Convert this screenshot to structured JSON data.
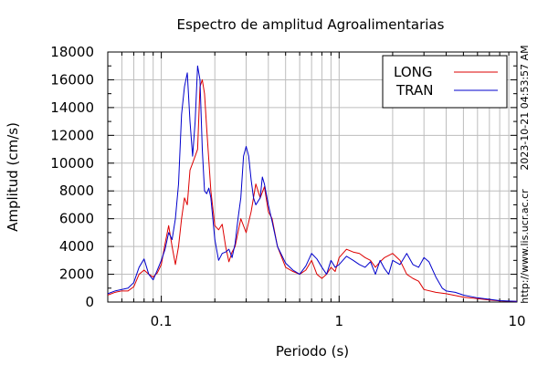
{
  "chart_data": {
    "type": "line",
    "title": "Espectro de amplitud Agroalimentarias",
    "xlabel": "Periodo (s)",
    "ylabel": "Amplitud (cm/s)",
    "x_scale": "log",
    "xlim": [
      0.05,
      10
    ],
    "ylim": [
      0,
      18000
    ],
    "x_ticks": [
      {
        "value": 0.1,
        "label": "0.1"
      },
      {
        "value": 1,
        "label": "1"
      },
      {
        "value": 10,
        "label": "10"
      }
    ],
    "y_ticks": [
      {
        "value": 0,
        "label": "0"
      },
      {
        "value": 2000,
        "label": "2000"
      },
      {
        "value": 4000,
        "label": "4000"
      },
      {
        "value": 6000,
        "label": "6000"
      },
      {
        "value": 8000,
        "label": "8000"
      },
      {
        "value": 10000,
        "label": "10000"
      },
      {
        "value": 12000,
        "label": "12000"
      },
      {
        "value": 14000,
        "label": "14000"
      },
      {
        "value": 16000,
        "label": "16000"
      },
      {
        "value": 18000,
        "label": "18000"
      }
    ],
    "grid": true,
    "legend_position": "top-right",
    "side_labels": {
      "timestamp": "2023-10-21 04:53:57 AM",
      "url": "http://www.lis.ucr.ac.cr"
    },
    "series": [
      {
        "name": "LONG",
        "color": "#dd0000",
        "points": [
          [
            0.05,
            500
          ],
          [
            0.055,
            700
          ],
          [
            0.06,
            800
          ],
          [
            0.065,
            800
          ],
          [
            0.07,
            1100
          ],
          [
            0.075,
            2000
          ],
          [
            0.08,
            2300
          ],
          [
            0.085,
            2000
          ],
          [
            0.09,
            1800
          ],
          [
            0.095,
            2100
          ],
          [
            0.1,
            2700
          ],
          [
            0.105,
            4200
          ],
          [
            0.11,
            5500
          ],
          [
            0.115,
            4000
          ],
          [
            0.12,
            2700
          ],
          [
            0.125,
            4000
          ],
          [
            0.13,
            6000
          ],
          [
            0.135,
            7500
          ],
          [
            0.14,
            7000
          ],
          [
            0.145,
            9500
          ],
          [
            0.15,
            10000
          ],
          [
            0.155,
            10500
          ],
          [
            0.16,
            11000
          ],
          [
            0.165,
            15500
          ],
          [
            0.17,
            16000
          ],
          [
            0.175,
            15000
          ],
          [
            0.18,
            12500
          ],
          [
            0.19,
            8000
          ],
          [
            0.2,
            5500
          ],
          [
            0.21,
            5200
          ],
          [
            0.22,
            5600
          ],
          [
            0.23,
            4000
          ],
          [
            0.24,
            2900
          ],
          [
            0.25,
            3600
          ],
          [
            0.26,
            4000
          ],
          [
            0.28,
            6000
          ],
          [
            0.3,
            5000
          ],
          [
            0.32,
            6500
          ],
          [
            0.34,
            8500
          ],
          [
            0.36,
            7500
          ],
          [
            0.38,
            8300
          ],
          [
            0.4,
            6500
          ],
          [
            0.42,
            6000
          ],
          [
            0.45,
            4000
          ],
          [
            0.5,
            2500
          ],
          [
            0.55,
            2200
          ],
          [
            0.6,
            2000
          ],
          [
            0.65,
            2300
          ],
          [
            0.7,
            3000
          ],
          [
            0.75,
            2000
          ],
          [
            0.8,
            1700
          ],
          [
            0.85,
            2000
          ],
          [
            0.9,
            2500
          ],
          [
            0.95,
            2200
          ],
          [
            1.0,
            3200
          ],
          [
            1.1,
            3800
          ],
          [
            1.2,
            3600
          ],
          [
            1.3,
            3500
          ],
          [
            1.4,
            3200
          ],
          [
            1.5,
            3000
          ],
          [
            1.6,
            2500
          ],
          [
            1.7,
            2900
          ],
          [
            1.8,
            3200
          ],
          [
            2.0,
            3500
          ],
          [
            2.2,
            3000
          ],
          [
            2.4,
            2000
          ],
          [
            2.6,
            1700
          ],
          [
            2.8,
            1500
          ],
          [
            3.0,
            900
          ],
          [
            3.5,
            700
          ],
          [
            4.0,
            600
          ],
          [
            5.0,
            350
          ],
          [
            6.0,
            250
          ],
          [
            7.0,
            150
          ],
          [
            8.0,
            80
          ],
          [
            10,
            40
          ]
        ]
      },
      {
        "name": "TRAN",
        "color": "#0000cc",
        "points": [
          [
            0.05,
            600
          ],
          [
            0.055,
            800
          ],
          [
            0.06,
            900
          ],
          [
            0.065,
            1000
          ],
          [
            0.07,
            1400
          ],
          [
            0.075,
            2500
          ],
          [
            0.08,
            3100
          ],
          [
            0.085,
            2000
          ],
          [
            0.09,
            1600
          ],
          [
            0.095,
            2300
          ],
          [
            0.1,
            3000
          ],
          [
            0.105,
            3800
          ],
          [
            0.11,
            5000
          ],
          [
            0.115,
            4500
          ],
          [
            0.12,
            6000
          ],
          [
            0.125,
            8500
          ],
          [
            0.13,
            13500
          ],
          [
            0.135,
            15500
          ],
          [
            0.14,
            16500
          ],
          [
            0.145,
            13000
          ],
          [
            0.15,
            10500
          ],
          [
            0.155,
            13000
          ],
          [
            0.16,
            17000
          ],
          [
            0.165,
            16000
          ],
          [
            0.17,
            11000
          ],
          [
            0.175,
            8000
          ],
          [
            0.18,
            7800
          ],
          [
            0.185,
            8200
          ],
          [
            0.19,
            7500
          ],
          [
            0.2,
            4500
          ],
          [
            0.21,
            3000
          ],
          [
            0.22,
            3500
          ],
          [
            0.23,
            3600
          ],
          [
            0.24,
            3800
          ],
          [
            0.25,
            3200
          ],
          [
            0.26,
            4200
          ],
          [
            0.27,
            6000
          ],
          [
            0.28,
            7500
          ],
          [
            0.29,
            10500
          ],
          [
            0.3,
            11200
          ],
          [
            0.31,
            10500
          ],
          [
            0.32,
            8800
          ],
          [
            0.33,
            7500
          ],
          [
            0.34,
            7000
          ],
          [
            0.36,
            7500
          ],
          [
            0.37,
            9000
          ],
          [
            0.38,
            8500
          ],
          [
            0.4,
            7000
          ],
          [
            0.42,
            5800
          ],
          [
            0.45,
            4000
          ],
          [
            0.5,
            2800
          ],
          [
            0.55,
            2300
          ],
          [
            0.6,
            2000
          ],
          [
            0.65,
            2600
          ],
          [
            0.7,
            3500
          ],
          [
            0.75,
            3100
          ],
          [
            0.8,
            2500
          ],
          [
            0.85,
            2000
          ],
          [
            0.9,
            3000
          ],
          [
            0.95,
            2500
          ],
          [
            1.0,
            2700
          ],
          [
            1.1,
            3300
          ],
          [
            1.2,
            3000
          ],
          [
            1.3,
            2700
          ],
          [
            1.4,
            2500
          ],
          [
            1.5,
            2900
          ],
          [
            1.6,
            2000
          ],
          [
            1.7,
            3000
          ],
          [
            1.8,
            2400
          ],
          [
            1.9,
            2000
          ],
          [
            2.0,
            3000
          ],
          [
            2.2,
            2700
          ],
          [
            2.4,
            3500
          ],
          [
            2.6,
            2700
          ],
          [
            2.8,
            2500
          ],
          [
            3.0,
            3200
          ],
          [
            3.2,
            2900
          ],
          [
            3.5,
            1800
          ],
          [
            3.8,
            1000
          ],
          [
            4.0,
            800
          ],
          [
            4.5,
            700
          ],
          [
            5.0,
            500
          ],
          [
            6.0,
            300
          ],
          [
            7.0,
            200
          ],
          [
            8.0,
            100
          ],
          [
            10,
            50
          ]
        ]
      }
    ]
  }
}
